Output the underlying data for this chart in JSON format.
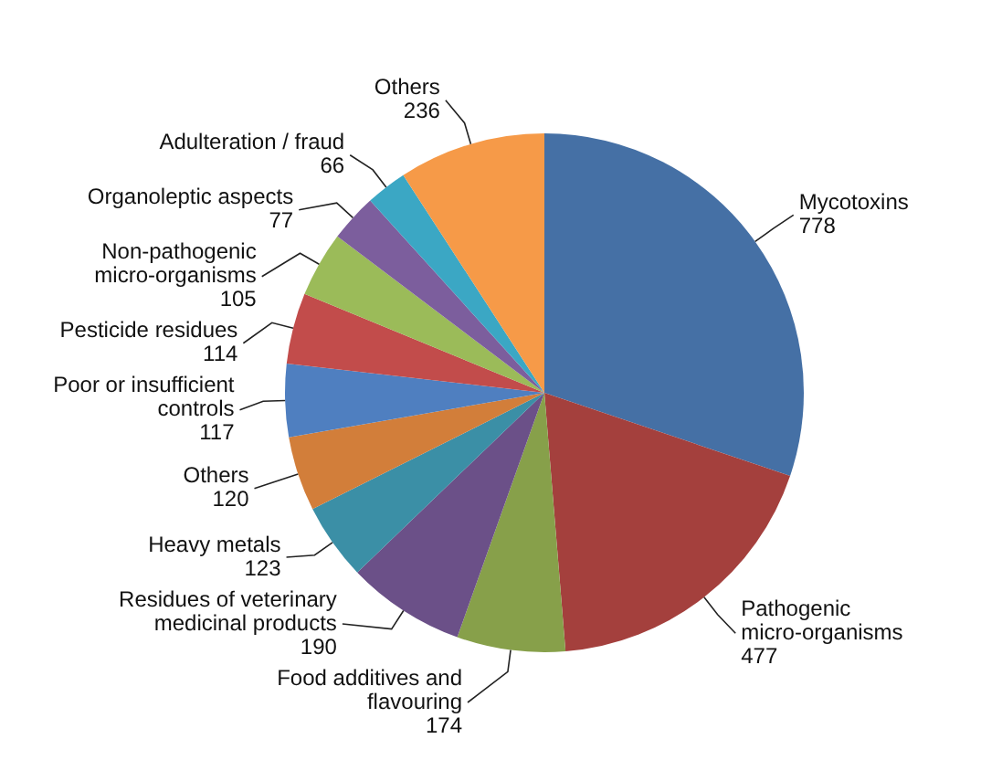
{
  "chart_data": {
    "type": "pie",
    "categories": [
      "Mycotoxins",
      "Pathogenic micro-organisms",
      "Food additives and flavouring",
      "Residues of veterinary medicinal products",
      "Heavy metals",
      "Others",
      "Poor or insufficient controls",
      "Pesticide residues",
      "Non-pathogenic micro-organisms",
      "Organoleptic aspects",
      "Adulteration / fraud",
      "Others"
    ],
    "values": [
      778,
      477,
      174,
      190,
      123,
      120,
      117,
      114,
      105,
      77,
      66,
      236
    ],
    "colors": [
      "#4570a5",
      "#a4403d",
      "#87a04a",
      "#6b5088",
      "#3b8fa6",
      "#d27e3a",
      "#4f7fc0",
      "#c24c4b",
      "#9bbb59",
      "#7c5e9d",
      "#3ba7c4",
      "#f69a48"
    ],
    "data_labels": true,
    "legend": false
  }
}
